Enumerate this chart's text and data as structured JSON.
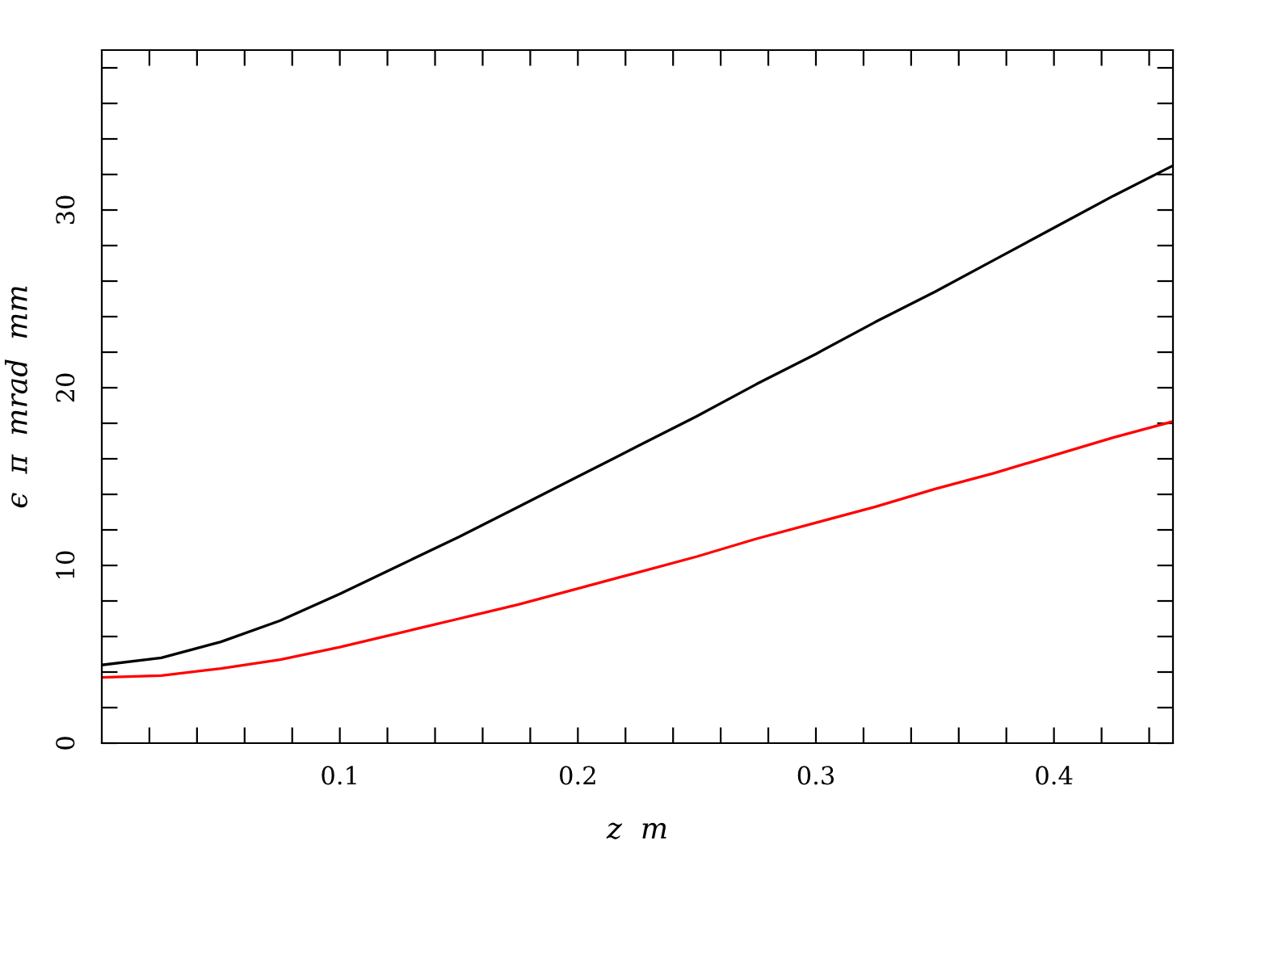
{
  "chart_data": {
    "type": "line",
    "xlabel": "z  m",
    "ylabel": "ϵ  π  mrad  mm",
    "x": [
      0,
      0.025,
      0.05,
      0.075,
      0.1,
      0.125,
      0.15,
      0.175,
      0.2,
      0.225,
      0.25,
      0.275,
      0.3,
      0.325,
      0.35,
      0.375,
      0.4,
      0.425,
      0.45
    ],
    "series": [
      {
        "color": "#000000",
        "values": [
          4.4,
          4.8,
          5.7,
          6.9,
          8.4,
          10.0,
          11.6,
          13.3,
          15.0,
          16.7,
          18.4,
          20.2,
          21.9,
          23.7,
          25.4,
          27.2,
          29.0,
          30.8,
          32.5
        ]
      },
      {
        "color": "#ff0000",
        "values": [
          3.7,
          3.8,
          4.2,
          4.7,
          5.4,
          6.2,
          7.0,
          7.8,
          8.7,
          9.6,
          10.5,
          11.5,
          12.4,
          13.3,
          14.3,
          15.2,
          16.2,
          17.2,
          18.1
        ]
      }
    ],
    "xlim": [
      0,
      0.45
    ],
    "ylim": [
      0,
      39
    ],
    "xticks": [
      {
        "value": 0.02,
        "label": null
      },
      {
        "value": 0.04,
        "label": null
      },
      {
        "value": 0.06,
        "label": null
      },
      {
        "value": 0.08,
        "label": null
      },
      0.1,
      {
        "value": 0.12,
        "label": null
      },
      {
        "value": 0.14,
        "label": null
      },
      {
        "value": 0.16,
        "label": null
      },
      {
        "value": 0.18,
        "label": null
      },
      0.2,
      {
        "value": 0.22,
        "label": null
      },
      {
        "value": 0.24,
        "label": null
      },
      {
        "value": 0.26,
        "label": null
      },
      {
        "value": 0.28,
        "label": null
      },
      0.3,
      {
        "value": 0.32,
        "label": null
      },
      {
        "value": 0.34,
        "label": null
      },
      {
        "value": 0.36,
        "label": null
      },
      {
        "value": 0.38,
        "label": null
      },
      0.4,
      {
        "value": 0.42,
        "label": null
      },
      {
        "value": 0.44,
        "label": null
      }
    ],
    "yticks": [
      0,
      {
        "value": 2,
        "label": null
      },
      {
        "value": 4,
        "label": null
      },
      {
        "value": 6,
        "label": null
      },
      {
        "value": 8,
        "label": null
      },
      10,
      {
        "value": 12,
        "label": null
      },
      {
        "value": 14,
        "label": null
      },
      {
        "value": 16,
        "label": null
      },
      {
        "value": 18,
        "label": null
      },
      20,
      {
        "value": 22,
        "label": null
      },
      {
        "value": 24,
        "label": null
      },
      {
        "value": 26,
        "label": null
      },
      {
        "value": 28,
        "label": null
      },
      30,
      {
        "value": 32,
        "label": null
      },
      {
        "value": 34,
        "label": null
      },
      {
        "value": 36,
        "label": null
      },
      {
        "value": 38,
        "label": null
      }
    ],
    "grid": false,
    "legend": false,
    "marker": "none",
    "line_style": "solid"
  }
}
